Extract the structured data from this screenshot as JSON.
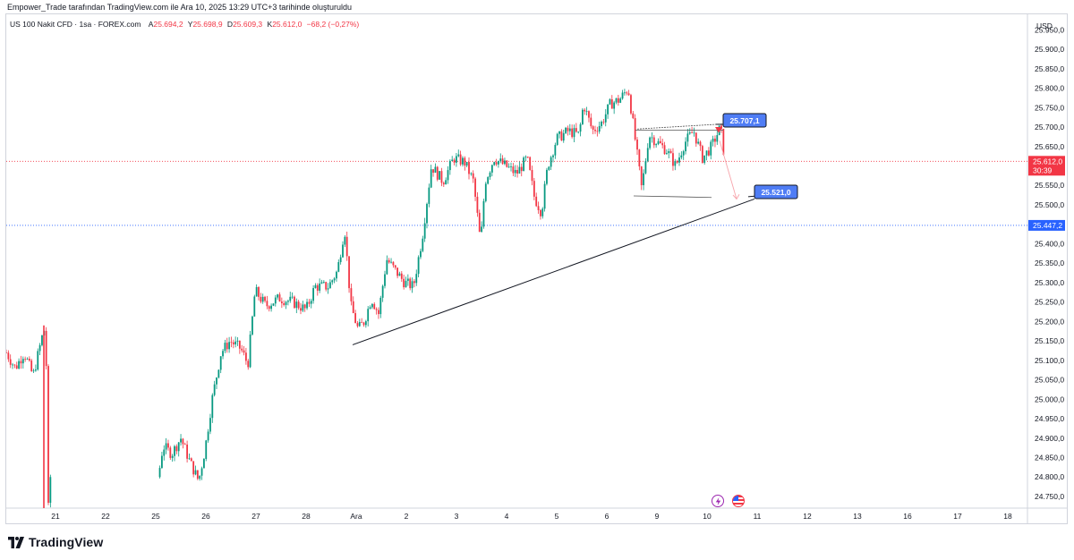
{
  "header": {
    "published_text": "Empower_Trade tarafından TradingView.com ile Ara 10, 2025 13:29 UTC+3 tarihinde oluşturuldu"
  },
  "symbol_bar": {
    "symbol": "US 100 Nakit CFD · 1sa · FOREX.com",
    "open_label": "A",
    "open_value": "25.694,2",
    "high_label": "Y",
    "high_value": "25.698,9",
    "low_label": "D",
    "low_value": "25.609,3",
    "close_label": "K",
    "close_value": "25.612,0",
    "change": "−68,2 (−0,27%)"
  },
  "footer": {
    "brand": "TradingView",
    "logo_icon": "tradingview-logo-icon"
  },
  "events": [
    {
      "name": "earnings-icon",
      "color": "#9c27b0"
    },
    {
      "name": "us-flag-icon",
      "color": "#f23645"
    }
  ],
  "chart_data": {
    "type": "candlestick",
    "currency": "USD",
    "ylim": [
      24720,
      25990
    ],
    "y_ticks": [
      "25.950,0",
      "25.900,0",
      "25.850,0",
      "25.800,0",
      "25.750,0",
      "25.700,0",
      "25.650,0",
      "25.600,0",
      "25.550,0",
      "25.500,0",
      "25.450,0",
      "25.400,0",
      "25.350,0",
      "25.300,0",
      "25.250,0",
      "25.200,0",
      "25.150,0",
      "25.100,0",
      "25.050,0",
      "25.000,0",
      "24.950,0",
      "24.900,0",
      "24.850,0",
      "24.800,0",
      "24.750,0"
    ],
    "y_tick_values": [
      25950,
      25900,
      25850,
      25800,
      25750,
      25700,
      25650,
      25600,
      25550,
      25500,
      25450,
      25400,
      25350,
      25300,
      25250,
      25200,
      25150,
      25100,
      25050,
      25000,
      24950,
      24900,
      24850,
      24800,
      24750
    ],
    "x_ticks": [
      "21",
      "22",
      "25",
      "26",
      "27",
      "28",
      "Ara",
      "2",
      "3",
      "4",
      "5",
      "6",
      "9",
      "10",
      "11",
      "12",
      "13",
      "16",
      "17",
      "18"
    ],
    "last_price": {
      "value": 25612.0,
      "label": "25.612,0",
      "countdown": "30:39",
      "color": "#f23645"
    },
    "reference_line": {
      "value": 25447.2,
      "label": "25.447,2",
      "color": "#2962ff"
    },
    "annotations": [
      {
        "label": "25.707,1",
        "value": 25707.1,
        "color": "#4f7df5"
      },
      {
        "label": "25.521,0",
        "value": 25521.0,
        "color": "#4f7df5"
      }
    ],
    "up_color": "#089981",
    "down_color": "#f23645",
    "price_path": [
      [
        0,
        25120
      ],
      [
        10,
        25080
      ],
      [
        20,
        25120
      ],
      [
        30,
        25060
      ],
      [
        40,
        25160
      ],
      [
        44,
        25190
      ],
      [
        47,
        24720
      ],
      [
        170,
        24800
      ],
      [
        175,
        24880
      ],
      [
        185,
        24860
      ],
      [
        195,
        24900
      ],
      [
        205,
        24840
      ],
      [
        215,
        24790
      ],
      [
        222,
        24870
      ],
      [
        230,
        25000
      ],
      [
        240,
        25120
      ],
      [
        250,
        25150
      ],
      [
        262,
        25130
      ],
      [
        270,
        25090
      ],
      [
        278,
        25280
      ],
      [
        290,
        25240
      ],
      [
        305,
        25260
      ],
      [
        320,
        25250
      ],
      [
        335,
        25230
      ],
      [
        345,
        25290
      ],
      [
        360,
        25290
      ],
      [
        370,
        25330
      ],
      [
        378,
        25440
      ],
      [
        385,
        25240
      ],
      [
        393,
        25180
      ],
      [
        400,
        25200
      ],
      [
        408,
        25260
      ],
      [
        416,
        25220
      ],
      [
        425,
        25360
      ],
      [
        435,
        25330
      ],
      [
        445,
        25300
      ],
      [
        455,
        25290
      ],
      [
        465,
        25420
      ],
      [
        475,
        25600
      ],
      [
        488,
        25560
      ],
      [
        500,
        25620
      ],
      [
        512,
        25610
      ],
      [
        522,
        25560
      ],
      [
        530,
        25400
      ],
      [
        535,
        25560
      ],
      [
        545,
        25620
      ],
      [
        558,
        25600
      ],
      [
        570,
        25580
      ],
      [
        582,
        25620
      ],
      [
        590,
        25520
      ],
      [
        598,
        25480
      ],
      [
        605,
        25600
      ],
      [
        615,
        25670
      ],
      [
        628,
        25690
      ],
      [
        640,
        25680
      ],
      [
        645,
        25760
      ],
      [
        655,
        25690
      ],
      [
        665,
        25710
      ],
      [
        675,
        25760
      ],
      [
        685,
        25770
      ],
      [
        695,
        25800
      ],
      [
        702,
        25680
      ],
      [
        710,
        25540
      ],
      [
        718,
        25680
      ],
      [
        728,
        25660
      ],
      [
        738,
        25640
      ],
      [
        748,
        25600
      ],
      [
        758,
        25660
      ],
      [
        768,
        25690
      ],
      [
        778,
        25620
      ],
      [
        788,
        25650
      ],
      [
        798,
        25700
      ],
      [
        803,
        25612
      ]
    ]
  }
}
